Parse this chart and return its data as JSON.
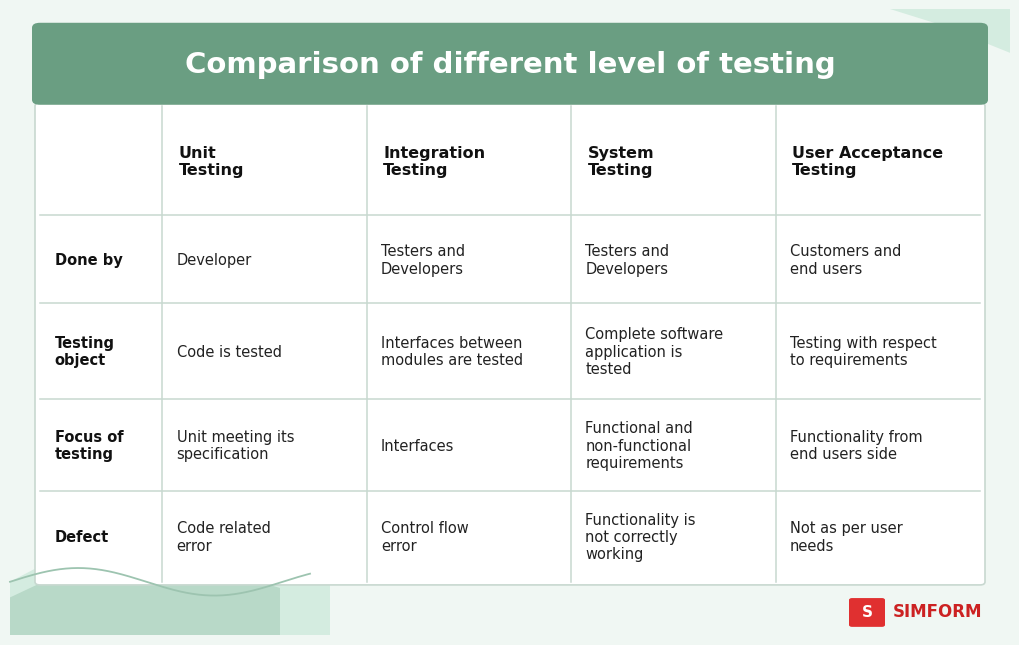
{
  "title": "Comparison of different level of testing",
  "title_bg_color": "#6a9e82",
  "title_text_color": "#ffffff",
  "table_bg_color": "#ffffff",
  "table_border_color": "#c8d8d0",
  "page_bg_color": "#f0f7f3",
  "col_headers": [
    "Unit\nTesting",
    "Integration\nTesting",
    "System\nTesting",
    "User Acceptance\nTesting"
  ],
  "row_headers": [
    "Done by",
    "Testing\nobject",
    "Focus of\ntesting",
    "Defect"
  ],
  "cells": [
    [
      "Developer",
      "Testers and\nDevelopers",
      "Testers and\nDevelopers",
      "Customers and\nend users"
    ],
    [
      "Code is tested",
      "Interfaces between\nmodules are tested",
      "Complete software\napplication is\ntested",
      "Testing with respect\nto requirements"
    ],
    [
      "Unit meeting its\nspecification",
      "Interfaces",
      "Functional and\nnon-functional\nrequirements",
      "Functionality from\nend users side"
    ],
    [
      "Code related\nerror",
      "Control flow\nerror",
      "Functionality is\nnot correctly\nworking",
      "Not as per user\nneeds"
    ]
  ],
  "col_divider_color": "#c8d8d0",
  "row_divider_color": "#c8d8d0",
  "header_font_size": 11.5,
  "cell_font_size": 10.5,
  "row_header_font_size": 10.5,
  "title_font_size": 21
}
